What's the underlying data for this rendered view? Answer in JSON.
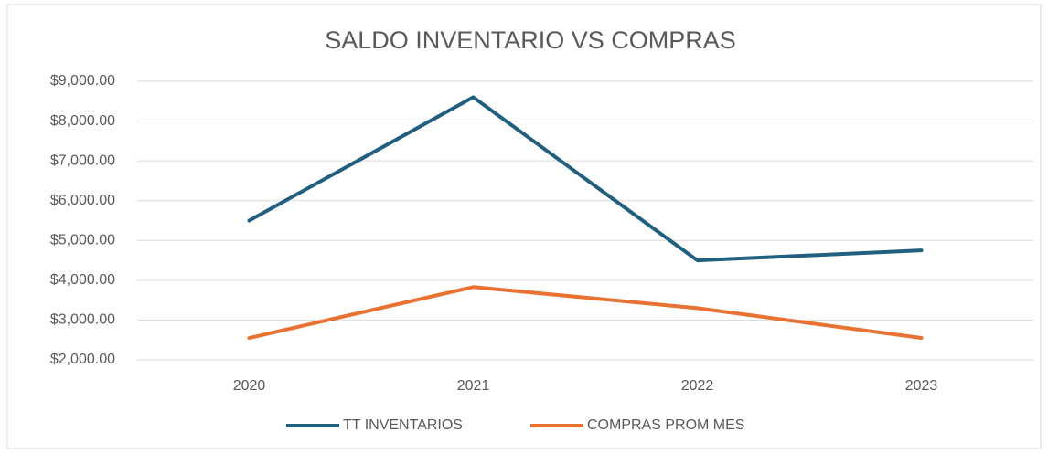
{
  "chart_data": {
    "type": "line",
    "title": "SALDO INVENTARIO VS COMPRAS",
    "categories": [
      "2020",
      "2021",
      "2022",
      "2023"
    ],
    "series": [
      {
        "name": "TT INVENTARIOS",
        "color": "#215f80",
        "values": [
          5500,
          8600,
          4500,
          4750
        ]
      },
      {
        "name": "COMPRAS PROM MES",
        "color": "#e97132",
        "values": [
          2550,
          3830,
          3300,
          2550
        ]
      }
    ],
    "ylim": [
      2000,
      9000
    ],
    "yticks": [
      {
        "value": 2000,
        "label": "$2,000.00"
      },
      {
        "value": 3000,
        "label": "$3,000.00"
      },
      {
        "value": 4000,
        "label": "$4,000.00"
      },
      {
        "value": 5000,
        "label": "$5,000.00"
      },
      {
        "value": 6000,
        "label": "$6,000.00"
      },
      {
        "value": 7000,
        "label": "$7,000.00"
      },
      {
        "value": 8000,
        "label": "$8,000.00"
      },
      {
        "value": 9000,
        "label": "$9,000.00"
      }
    ],
    "grid": true,
    "legend": "bottom"
  }
}
